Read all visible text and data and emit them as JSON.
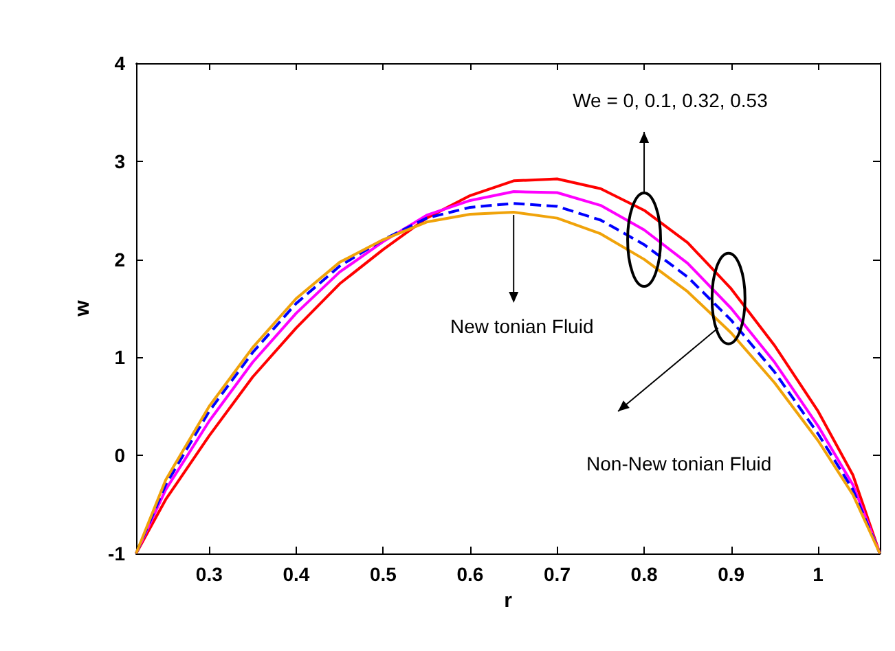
{
  "chart_data": {
    "type": "line",
    "xlabel": "r",
    "ylabel": "w",
    "xlim": [
      0.216,
      1.071
    ],
    "xticks": [
      0.3,
      0.4,
      0.5,
      0.6,
      0.7,
      0.8,
      0.9,
      1
    ],
    "ylim": [
      -1,
      4
    ],
    "yticks": [
      -1,
      0,
      1,
      2,
      3,
      4
    ],
    "grid": false,
    "marker": "none",
    "x": [
      0.216,
      0.25,
      0.3,
      0.35,
      0.4,
      0.45,
      0.5,
      0.55,
      0.6,
      0.65,
      0.7,
      0.75,
      0.8,
      0.85,
      0.9,
      0.95,
      1.0,
      1.04,
      1.071
    ],
    "series": [
      {
        "color": "#ff0000",
        "line_style": "solid",
        "values": [
          -1,
          -0.45,
          0.2,
          0.8,
          1.3,
          1.75,
          2.1,
          2.42,
          2.65,
          2.8,
          2.82,
          2.72,
          2.5,
          2.17,
          1.7,
          1.12,
          0.45,
          -0.2,
          -1
        ]
      },
      {
        "color": "#ff00ff",
        "line_style": "solid",
        "values": [
          -1,
          -0.35,
          0.35,
          0.95,
          1.45,
          1.87,
          2.18,
          2.45,
          2.6,
          2.69,
          2.68,
          2.55,
          2.3,
          1.96,
          1.5,
          0.95,
          0.3,
          -0.3,
          -1
        ]
      },
      {
        "color": "#0000ff",
        "line_style": "dashed",
        "values": [
          -1,
          -0.3,
          0.45,
          1.05,
          1.55,
          1.93,
          2.2,
          2.42,
          2.53,
          2.57,
          2.54,
          2.4,
          2.15,
          1.82,
          1.38,
          0.85,
          0.22,
          -0.35,
          -1
        ]
      },
      {
        "color": "#f0a30a",
        "line_style": "solid",
        "values": [
          -1,
          -0.25,
          0.5,
          1.1,
          1.6,
          1.97,
          2.2,
          2.38,
          2.46,
          2.48,
          2.42,
          2.26,
          2.0,
          1.67,
          1.25,
          0.74,
          0.15,
          -0.4,
          -1
        ]
      }
    ],
    "annotations": [
      "We = 0, 0.1, 0.32, 0.53",
      {
        "text": "New tonian Fluid",
        "x": 0.65,
        "y": 2.48
      },
      "Non-New tonian Fluid"
    ]
  }
}
